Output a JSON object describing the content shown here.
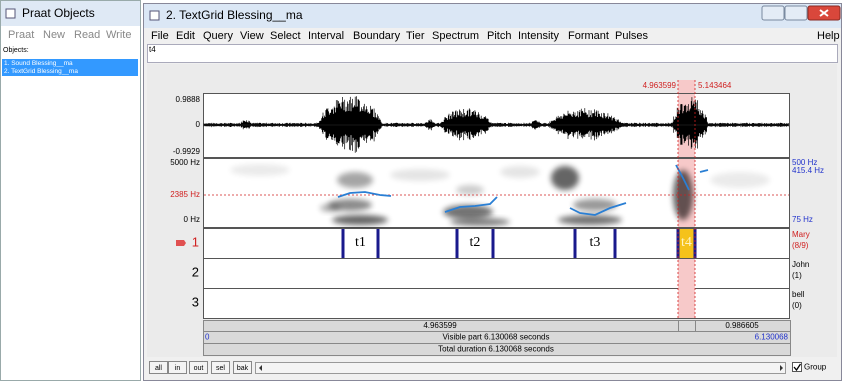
{
  "objects_window": {
    "title": "Praat Objects",
    "menu": [
      "Praat",
      "New",
      "Read",
      "Write"
    ],
    "list_label": "Objects:",
    "items": [
      "1. Sound Blessing__ma",
      "2. TextGrid Blessing__ma"
    ]
  },
  "editor": {
    "title": "2. TextGrid Blessing__ma",
    "menu": [
      "File",
      "Edit",
      "Query",
      "View",
      "Select",
      "Interval",
      "Boundary",
      "Tier",
      "Spectrum",
      "Pitch",
      "Intensity",
      "Formant",
      "Pulses"
    ],
    "help": "Help",
    "text_field": "t4",
    "selection": {
      "start": "4.963599",
      "end": "5.143464"
    },
    "waveform": {
      "max": "0.9888",
      "zero": "0",
      "min": "-0.9929"
    },
    "spectrogram": {
      "top": "5000 Hz",
      "cursor": "2385 Hz",
      "bottom": "0 Hz",
      "pitch_top": "500 Hz",
      "pitch_value": "415.4 Hz",
      "pitch_bottom": "75 Hz"
    },
    "tiers": [
      {
        "number": "1",
        "name": "Mary",
        "count": "(8/9)",
        "intervals": [
          "t1",
          "t2",
          "t3",
          "t4"
        ]
      },
      {
        "number": "2",
        "name": "John",
        "count": "(1)"
      },
      {
        "number": "3",
        "name": "bell",
        "count": "(0)"
      }
    ],
    "time_bar": {
      "before": "4.963599",
      "after": "0.986605"
    },
    "visible": {
      "start": "0",
      "label": "Visible part 6.130068 seconds",
      "end": "6.130068"
    },
    "total": "Total duration 6.130068 seconds",
    "buttons": [
      "all",
      "in",
      "out",
      "sel",
      "bak"
    ],
    "group": "Group"
  }
}
